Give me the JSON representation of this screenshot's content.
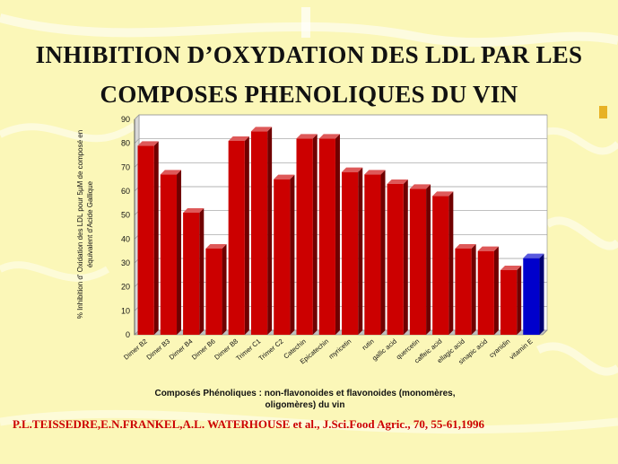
{
  "title": {
    "line1": "INHIBITION D’OXYDATION DES LDL PAR LES",
    "line2": "COMPOSES PHENOLIQUES DU VIN"
  },
  "citation": "P.L.TEISSEDRE,E.N.FRANKEL,A.L. WATERHOUSE et al., J.Sci.Food Agric., 70, 55-61,1996",
  "chart_data": {
    "type": "bar",
    "title": "INHIBITION D’OXYDATION DES LDL PAR LES COMPOSES PHENOLIQUES DU VIN",
    "ylabel": "% Inhibition d' Oxidation des LDL pour 5µM de composé en équivalent d'Acide Gallique",
    "xlabel_line1": "Composés Phénoliques  : non-flavonoides et flavonoides  (monomères,",
    "xlabel_line2": "oligomères)  du vin",
    "ylim": [
      0,
      90
    ],
    "yticks": [
      0,
      10,
      20,
      30,
      40,
      50,
      60,
      70,
      80,
      90
    ],
    "categories": [
      "Dimer B2",
      "Dimer B3",
      "Dimer B4",
      "Dimer B6",
      "Dimer B8",
      "Trimer C1",
      "Trimer C2",
      "Catechin",
      "Epicatechin",
      "myricetin",
      "rutin",
      "gallic acid",
      "quercetin",
      "caffeic acid",
      "ellagic acid",
      "sinapic acid",
      "cyanidin",
      "vitamin E"
    ],
    "values": [
      79,
      67,
      51,
      36,
      81,
      85,
      65,
      82,
      82,
      68,
      67,
      63,
      61,
      58,
      36,
      35,
      27,
      32
    ],
    "bar_colors": [
      "#cc0000",
      "#cc0000",
      "#cc0000",
      "#cc0000",
      "#cc0000",
      "#cc0000",
      "#cc0000",
      "#cc0000",
      "#cc0000",
      "#cc0000",
      "#cc0000",
      "#cc0000",
      "#cc0000",
      "#cc0000",
      "#cc0000",
      "#cc0000",
      "#cc0000",
      "#0000cc"
    ],
    "grid": true
  }
}
